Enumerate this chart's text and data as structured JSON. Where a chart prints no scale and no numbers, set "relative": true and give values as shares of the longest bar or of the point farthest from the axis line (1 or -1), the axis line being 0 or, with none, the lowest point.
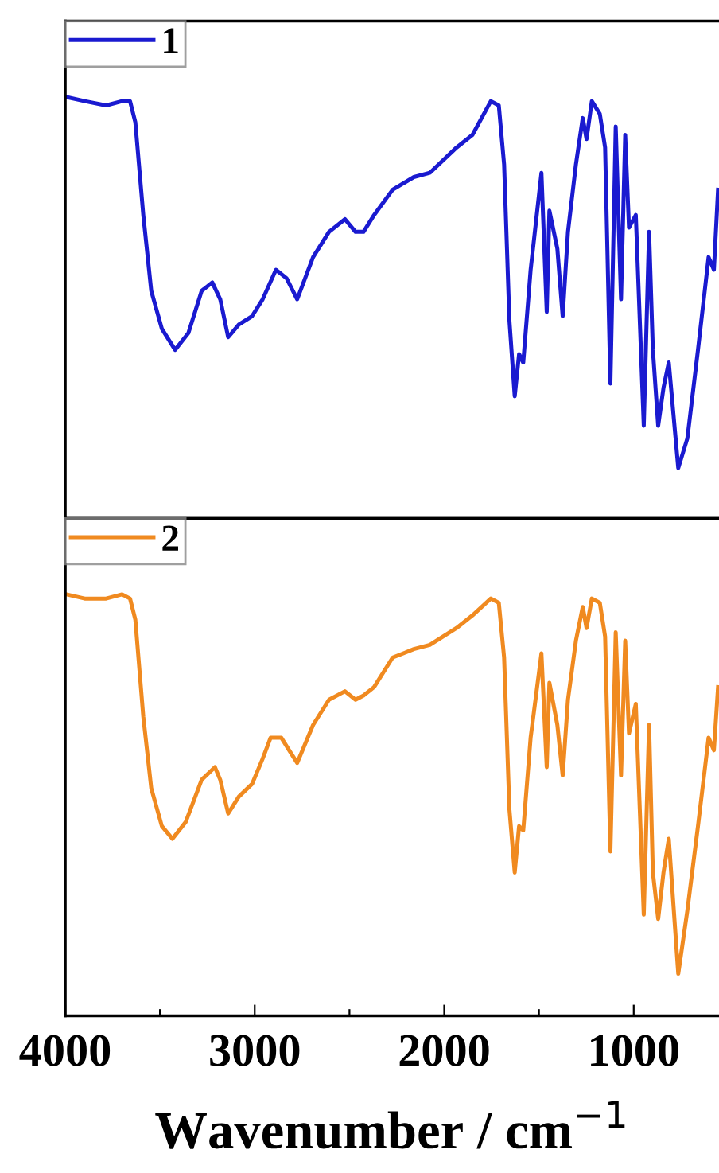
{
  "chart_data": [
    {
      "type": "line",
      "relative": true,
      "xlim": [
        4000,
        550
      ],
      "tick_labels": false,
      "legend": "top left",
      "grid": false,
      "x": [
        3994,
        3897,
        3784,
        3700,
        3658,
        3630,
        3588,
        3546,
        3490,
        3420,
        3350,
        3280,
        3224,
        3182,
        3140,
        3084,
        3014,
        2958,
        2888,
        2832,
        2776,
        2692,
        2608,
        2524,
        2468,
        2426,
        2370,
        2272,
        2160,
        2076,
        1935,
        1851,
        1754,
        1712,
        1684,
        1656,
        1628,
        1605,
        1583,
        1544,
        1487,
        1459,
        1445,
        1403,
        1375,
        1347,
        1305,
        1269,
        1249,
        1221,
        1179,
        1151,
        1123,
        1095,
        1067,
        1045,
        1025,
        989,
        947,
        919,
        899,
        871,
        843,
        815,
        765,
        717,
        661,
        605,
        577,
        555
      ],
      "series": [
        {
          "name": "1",
          "color": "#1a1ad0",
          "values": [
            1.0,
            0.99,
            0.98,
            0.99,
            0.99,
            0.94,
            0.72,
            0.54,
            0.45,
            0.4,
            0.44,
            0.54,
            0.56,
            0.52,
            0.43,
            0.46,
            0.48,
            0.52,
            0.59,
            0.57,
            0.52,
            0.62,
            0.68,
            0.71,
            0.68,
            0.68,
            0.72,
            0.78,
            0.81,
            0.82,
            0.88,
            0.91,
            0.99,
            0.98,
            0.84,
            0.47,
            0.29,
            0.39,
            0.37,
            0.59,
            0.82,
            0.49,
            0.73,
            0.64,
            0.48,
            0.68,
            0.84,
            0.95,
            0.9,
            0.99,
            0.96,
            0.88,
            0.32,
            0.93,
            0.52,
            0.91,
            0.69,
            0.72,
            0.22,
            0.68,
            0.4,
            0.22,
            0.31,
            0.37,
            0.12,
            0.19,
            0.4,
            0.62,
            0.59,
            0.78
          ]
        }
      ]
    },
    {
      "type": "line",
      "relative": true,
      "xlim": [
        4000,
        550
      ],
      "xticks": [
        4000,
        {
          "value": 3500,
          "label": null
        },
        3000,
        {
          "value": 2500,
          "label": null
        },
        2000,
        {
          "value": 1500,
          "label": null
        },
        1000
      ],
      "tick_labels": "x",
      "legend": "top left",
      "grid": false,
      "xlabel": "Wavenumber / cm$^{−1}$",
      "x": [
        3994,
        3897,
        3784,
        3700,
        3658,
        3630,
        3588,
        3546,
        3490,
        3434,
        3364,
        3280,
        3210,
        3182,
        3140,
        3084,
        3014,
        2958,
        2916,
        2860,
        2818,
        2776,
        2692,
        2608,
        2524,
        2468,
        2426,
        2370,
        2272,
        2160,
        2076,
        1935,
        1851,
        1754,
        1712,
        1684,
        1656,
        1628,
        1605,
        1583,
        1544,
        1487,
        1459,
        1445,
        1403,
        1375,
        1347,
        1305,
        1269,
        1249,
        1221,
        1179,
        1151,
        1123,
        1095,
        1067,
        1045,
        1025,
        989,
        947,
        919,
        899,
        871,
        843,
        815,
        765,
        717,
        661,
        605,
        577,
        555
      ],
      "series": [
        {
          "name": "2",
          "color": "#f08a20",
          "values": [
            1.0,
            0.99,
            0.99,
            1.0,
            0.99,
            0.94,
            0.71,
            0.54,
            0.45,
            0.42,
            0.46,
            0.56,
            0.59,
            0.56,
            0.48,
            0.52,
            0.55,
            0.61,
            0.66,
            0.66,
            0.63,
            0.6,
            0.69,
            0.75,
            0.77,
            0.75,
            0.76,
            0.78,
            0.85,
            0.87,
            0.88,
            0.92,
            0.95,
            0.99,
            0.98,
            0.85,
            0.49,
            0.34,
            0.45,
            0.44,
            0.66,
            0.86,
            0.59,
            0.79,
            0.69,
            0.57,
            0.75,
            0.89,
            0.97,
            0.92,
            0.99,
            0.98,
            0.9,
            0.39,
            0.91,
            0.57,
            0.89,
            0.67,
            0.74,
            0.24,
            0.69,
            0.34,
            0.23,
            0.34,
            0.42,
            0.1,
            0.25,
            0.45,
            0.66,
            0.63,
            0.78
          ]
        }
      ]
    }
  ]
}
